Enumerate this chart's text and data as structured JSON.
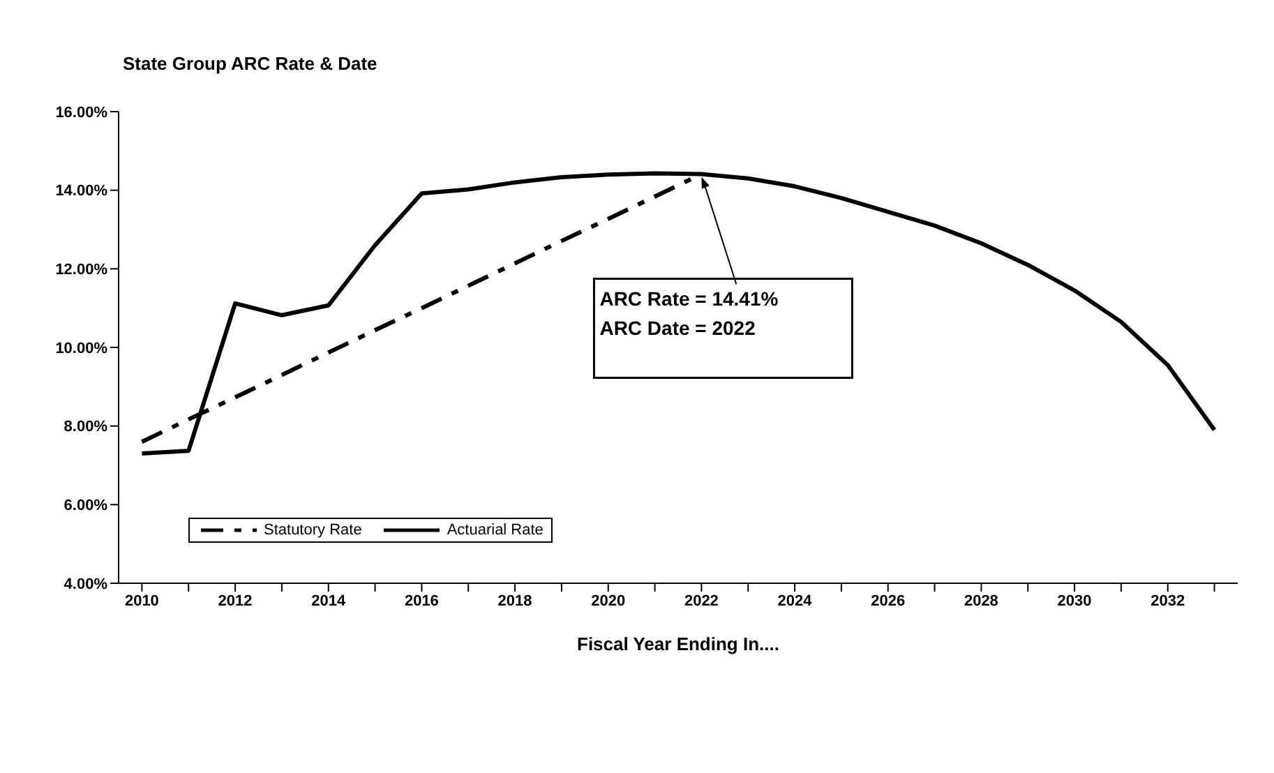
{
  "chart_data": {
    "type": "line",
    "title": "State Group ARC Rate & Date",
    "xlabel": "Fiscal Year Ending In....",
    "series": [
      {
        "name": "Statutory Rate",
        "color": "#000000",
        "line_style": "dashed",
        "x": [
          2010,
          2011,
          2012,
          2013,
          2014,
          2015,
          2016,
          2017,
          2018,
          2019,
          2020,
          2021,
          2022
        ],
        "values": [
          7.6,
          8.17,
          8.73,
          9.3,
          9.87,
          10.44,
          11.0,
          11.57,
          12.14,
          12.71,
          13.27,
          13.84,
          14.41
        ]
      },
      {
        "name": "Actuarial Rate",
        "color": "#000000",
        "line_style": "solid",
        "x": [
          2010,
          2011,
          2012,
          2013,
          2014,
          2015,
          2016,
          2017,
          2018,
          2019,
          2020,
          2021,
          2022,
          2023,
          2024,
          2025,
          2026,
          2027,
          2028,
          2029,
          2030,
          2031,
          2032,
          2033
        ],
        "values": [
          7.3,
          7.37,
          11.12,
          10.82,
          11.07,
          12.6,
          13.92,
          14.02,
          14.2,
          14.33,
          14.4,
          14.43,
          14.41,
          14.3,
          14.1,
          13.8,
          13.45,
          13.1,
          12.65,
          12.1,
          11.45,
          10.65,
          9.55,
          7.9
        ]
      }
    ],
    "xlim": [
      2009.5,
      2033.5
    ],
    "xticks": [
      2010,
      {
        "value": 2011,
        "label": null
      },
      2012,
      {
        "value": 2013,
        "label": null
      },
      2014,
      {
        "value": 2015,
        "label": null
      },
      2016,
      {
        "value": 2017,
        "label": null
      },
      2018,
      {
        "value": 2019,
        "label": null
      },
      2020,
      {
        "value": 2021,
        "label": null
      },
      2022,
      {
        "value": 2023,
        "label": null
      },
      2024,
      {
        "value": 2025,
        "label": null
      },
      2026,
      {
        "value": 2027,
        "label": null
      },
      2028,
      {
        "value": 2029,
        "label": null
      },
      2030,
      {
        "value": 2031,
        "label": null
      },
      2032,
      {
        "value": 2033,
        "label": null
      }
    ],
    "ylim": [
      4,
      16
    ],
    "yticks": [
      {
        "value": 4,
        "label": "4.00%"
      },
      {
        "value": 6,
        "label": "6.00%"
      },
      {
        "value": 8,
        "label": "8.00%"
      },
      {
        "value": 10,
        "label": "10.00%"
      },
      {
        "value": 12,
        "label": "12.00%"
      },
      {
        "value": 14,
        "label": "14.00%"
      },
      {
        "value": 16,
        "label": "16.00%"
      }
    ],
    "annotations": [
      {
        "text": "ARC Rate = 14.41%\nARC Date = 2022",
        "x": 2022,
        "y": 14.41
      }
    ],
    "grid": false,
    "legend": "bottom left",
    "marker": "none"
  }
}
